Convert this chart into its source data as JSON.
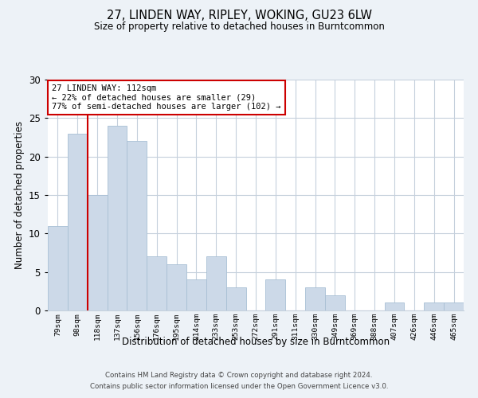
{
  "title1": "27, LINDEN WAY, RIPLEY, WOKING, GU23 6LW",
  "title2": "Size of property relative to detached houses in Burntcommon",
  "xlabel": "Distribution of detached houses by size in Burntcommon",
  "ylabel": "Number of detached properties",
  "categories": [
    "79sqm",
    "98sqm",
    "118sqm",
    "137sqm",
    "156sqm",
    "176sqm",
    "195sqm",
    "214sqm",
    "233sqm",
    "253sqm",
    "272sqm",
    "291sqm",
    "311sqm",
    "330sqm",
    "349sqm",
    "369sqm",
    "388sqm",
    "407sqm",
    "426sqm",
    "446sqm",
    "465sqm"
  ],
  "values": [
    11,
    23,
    15,
    24,
    22,
    7,
    6,
    4,
    7,
    3,
    0,
    4,
    0,
    3,
    2,
    0,
    0,
    1,
    0,
    1,
    1
  ],
  "bar_color": "#ccd9e8",
  "bar_edge_color": "#a8bfd4",
  "vline_color": "#cc0000",
  "vline_x_idx": 2,
  "annotation_title": "27 LINDEN WAY: 112sqm",
  "annotation_line2": "← 22% of detached houses are smaller (29)",
  "annotation_line3": "77% of semi-detached houses are larger (102) →",
  "annotation_box_color": "#ffffff",
  "annotation_box_edge": "#cc0000",
  "ylim": [
    0,
    30
  ],
  "yticks": [
    0,
    5,
    10,
    15,
    20,
    25,
    30
  ],
  "footer1": "Contains HM Land Registry data © Crown copyright and database right 2024.",
  "footer2": "Contains public sector information licensed under the Open Government Licence v3.0.",
  "bg_color": "#edf2f7",
  "plot_bg_color": "#ffffff",
  "grid_color": "#c5d0dc"
}
